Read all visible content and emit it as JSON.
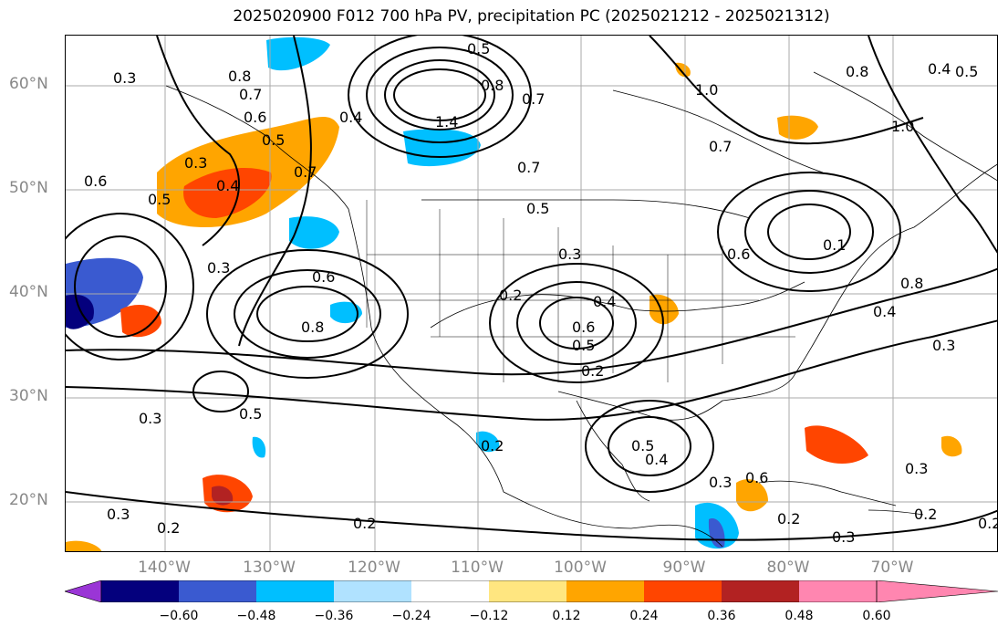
{
  "title": "2025020900 F012 700 hPa PV, precipitation PC (2025021212 - 2025021312)",
  "lat_labels": [
    "60°N",
    "50°N",
    "40°N",
    "30°N",
    "20°N"
  ],
  "lon_labels": [
    "140°W",
    "130°W",
    "120°W",
    "110°W",
    "100°W",
    "90°W",
    "80°W",
    "70°W"
  ],
  "colorbar": {
    "ticks": [
      "−0.60",
      "−0.48",
      "−0.36",
      "−0.24",
      "−0.12",
      "0.12",
      "0.24",
      "0.36",
      "0.48",
      "0.60"
    ],
    "colors": [
      "#9a35d6",
      "#04007d",
      "#3a5ad0",
      "#00bfff",
      "#b0e2ff",
      "#ffffff",
      "#ffe680",
      "#ffa500",
      "#ff4500",
      "#b22222",
      "#ff86b0"
    ]
  },
  "contour_labels": [
    "0.3",
    "0.8",
    "0.7",
    "0.6",
    "0.5",
    "0.3",
    "0.4",
    "0.7",
    "0.6",
    "0.5",
    "0.4",
    "0.3",
    "0.5",
    "1.4",
    "0.8",
    "0.7",
    "1.0",
    "0.8",
    "0.7",
    "0.7",
    "0.5",
    "0.3",
    "0.2",
    "0.4",
    "0.6",
    "0.5",
    "0.2",
    "0.8",
    "0.6",
    "0.6",
    "0.8",
    "0.4",
    "0.3",
    "0.3",
    "0.5",
    "0.3",
    "0.2",
    "0.2",
    "0.4",
    "0.5",
    "0.6",
    "0.3",
    "0.2",
    "0.3",
    "0.2",
    "0.3",
    "0.2",
    "0.1",
    "0.2",
    "1.0",
    "0.4",
    "0.5"
  ]
}
